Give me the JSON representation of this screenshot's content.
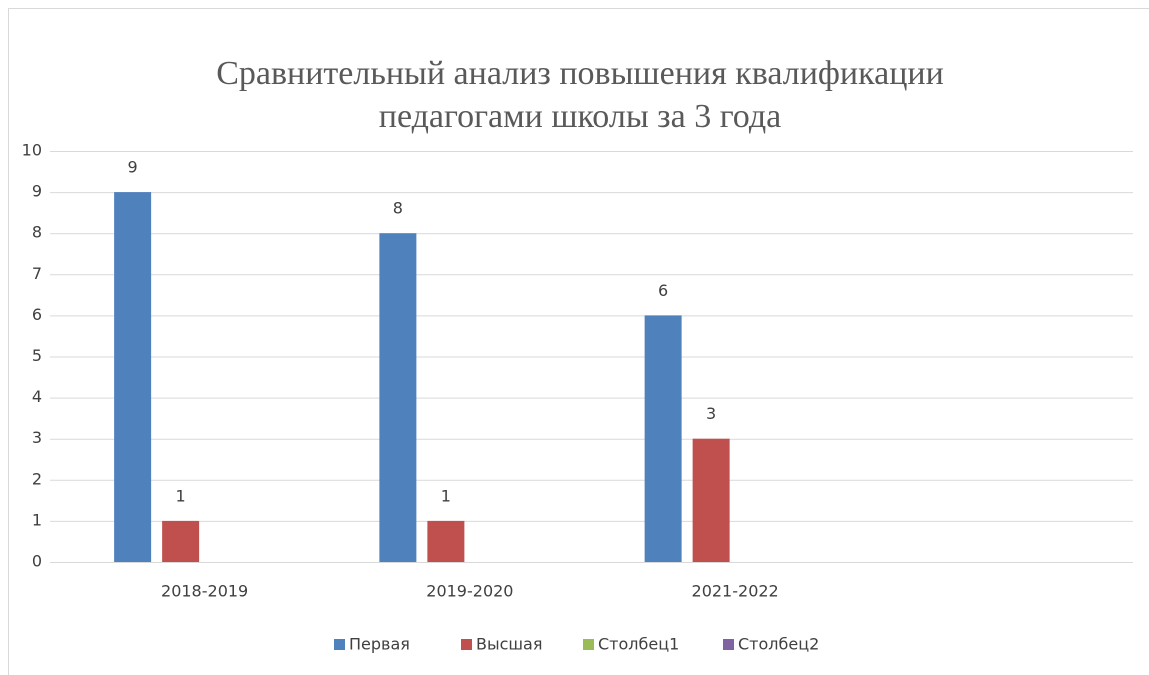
{
  "chart_data": {
    "type": "bar",
    "title": [
      "Сравнительный анализ  повышения квалификации",
      "педагогами школы  за 3 года"
    ],
    "categories": [
      "2018-2019",
      "2019-2020",
      "2021-2022",
      null
    ],
    "series": [
      {
        "name": "Первая",
        "color": "#4f81bd",
        "values": [
          9,
          8,
          6,
          null
        ]
      },
      {
        "name": "Высшая",
        "color": "#c0504d",
        "values": [
          1,
          1,
          3,
          null
        ]
      },
      {
        "name": "Столбец1",
        "color": "#9bbb59",
        "values": [
          null,
          null,
          null,
          null
        ]
      },
      {
        "name": "Столбец2",
        "color": "#8064a2",
        "values": [
          null,
          null,
          null,
          null
        ]
      }
    ],
    "ylim": [
      0,
      10
    ],
    "yticks": [
      0,
      1,
      2,
      3,
      4,
      5,
      6,
      7,
      8,
      9,
      10
    ],
    "grid": true,
    "legend": "bottom"
  }
}
